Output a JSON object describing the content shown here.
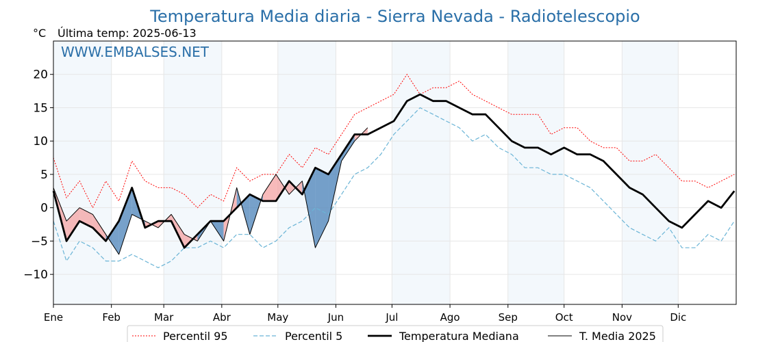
{
  "title": "Temperatura Media diaria - Sierra Nevada - Radiotelescopio",
  "unit": "°C",
  "last_temp_label": "Última temp: 2025-06-13",
  "watermark": "WWW.EMBALSES.NET",
  "chart_data": {
    "type": "line",
    "title": "Temperatura Media diaria - Sierra Nevada - Radiotelescopio",
    "ylabel": "°C",
    "ylim": [
      -14.5,
      25
    ],
    "y_ticks": [
      20,
      15,
      10,
      5,
      0,
      -5,
      -10
    ],
    "y_tick_labels": [
      "20",
      "15",
      "10",
      "5",
      "0",
      "−5",
      "−10"
    ],
    "x_domain": [
      "Ene",
      "Dic"
    ],
    "month_labels": [
      "Ene",
      "Feb",
      "Mar",
      "Abr",
      "May",
      "Jun",
      "Jul",
      "Ago",
      "Sep",
      "Oct",
      "Nov",
      "Dic"
    ],
    "month_day_of_year": [
      1,
      32,
      60,
      91,
      121,
      152,
      182,
      213,
      244,
      274,
      305,
      335
    ],
    "grid": true,
    "legend_placement": "bottom-center",
    "x_sample_days": [
      1,
      8,
      15,
      22,
      29,
      36,
      43,
      50,
      57,
      64,
      71,
      78,
      85,
      92,
      99,
      106,
      113,
      120,
      127,
      134,
      141,
      148,
      155,
      162,
      169,
      176,
      183,
      190,
      197,
      204,
      211,
      218,
      225,
      232,
      239,
      246,
      253,
      260,
      267,
      274,
      281,
      288,
      295,
      302,
      309,
      316,
      323,
      330,
      337,
      344,
      351,
      358,
      365
    ],
    "series": [
      {
        "name": "Percentil 95",
        "color": "#ff0000",
        "style": "dotted",
        "values": [
          7.5,
          1.5,
          4,
          0,
          4,
          1,
          7,
          4,
          3,
          3,
          2,
          0,
          2,
          1,
          6,
          4,
          5,
          5,
          8,
          6,
          9,
          8,
          11,
          14,
          15,
          16,
          17,
          20,
          17,
          18,
          18,
          19,
          17,
          16,
          15,
          14,
          14,
          14,
          11,
          12,
          12,
          10,
          9,
          9,
          7,
          7,
          8,
          6,
          4,
          4,
          3,
          4,
          5
        ]
      },
      {
        "name": "Percentil 5",
        "color": "#6ab4d6",
        "style": "dashed",
        "values": [
          -2,
          -8,
          -5,
          -6,
          -8,
          -8,
          -7,
          -8,
          -9,
          -8,
          -6,
          -6,
          -5,
          -6,
          -4,
          -4,
          -6,
          -5,
          -3,
          -2,
          0,
          -1,
          2,
          5,
          6,
          8,
          11,
          13,
          15,
          14,
          13,
          12,
          10,
          11,
          9,
          8,
          6,
          6,
          5,
          5,
          4,
          3,
          1,
          -1,
          -3,
          -4,
          -5,
          -3,
          -6,
          -6,
          -4,
          -5,
          -2
        ]
      },
      {
        "name": "Temperatura Mediana",
        "color": "#000000",
        "style": "solid-thick",
        "values": [
          2.5,
          -5,
          -2,
          -3,
          -5,
          -2,
          3,
          -3,
          -2,
          -2,
          -6,
          -4,
          -2,
          -2,
          0,
          2,
          1,
          1,
          4,
          2,
          6,
          5,
          8,
          11,
          11,
          12,
          13,
          16,
          17,
          16,
          16,
          15,
          14,
          14,
          12,
          10,
          9,
          9,
          8,
          9,
          8,
          8,
          7,
          5,
          3,
          2,
          0,
          -2,
          -3,
          -1,
          1,
          0,
          2.5
        ]
      },
      {
        "name": "T. Media 2025",
        "color": "#000000",
        "style": "solid-thin",
        "values": [
          3,
          -2,
          0,
          -1,
          -4,
          -7,
          -1,
          -2,
          -3,
          -1,
          -4,
          -5,
          -2,
          -5,
          3,
          -4,
          2,
          5,
          2,
          4,
          -6,
          -2,
          7,
          10,
          12
        ]
      }
    ],
    "fill_above_median_color": "#f4a3a3",
    "fill_below_median_color": "#4a82b8"
  },
  "legend": {
    "p95": "Percentil 95",
    "p5": "Percentil 5",
    "median": "Temperatura Mediana",
    "current": "T. Media 2025"
  }
}
